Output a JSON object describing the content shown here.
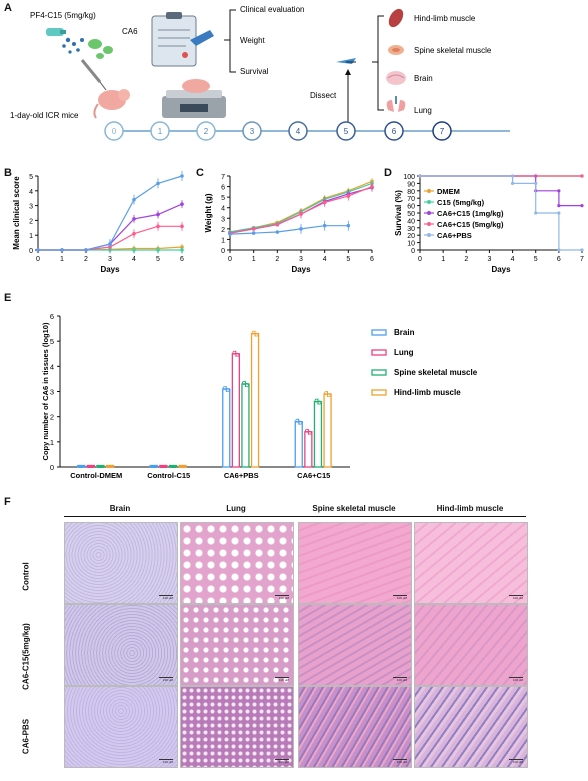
{
  "panels": {
    "A": "A",
    "B": "B",
    "C": "C",
    "D": "D",
    "E": "E",
    "F": "F"
  },
  "panelA": {
    "drug_label": "PF4-C15 (5mg/kg)",
    "virus_label": "CA6",
    "mice_label": "1-day-old ICR mice",
    "eval_items": [
      "Clinical evaluation",
      "Weight",
      "Survival"
    ],
    "dissect_label": "Dissect",
    "tissues": [
      "Hind-limb muscle",
      "Spine skeletal muscle",
      "Brain",
      "Lung"
    ],
    "days": [
      "0",
      "1",
      "2",
      "3",
      "4",
      "5",
      "6",
      "7"
    ],
    "colors": {
      "line": "#6aa0c8",
      "ring_dark": "#2f4f8f",
      "ring_light": "#8ab6d8"
    }
  },
  "chart_data": [
    {
      "panel": "B",
      "type": "line",
      "ylabel": "Mean clinical score",
      "xlabel": "Days",
      "xlim": [
        0,
        6
      ],
      "ylim": [
        0,
        5
      ],
      "x_ticks": [
        "0",
        "1",
        "2",
        "3",
        "4",
        "5",
        "6"
      ],
      "y_ticks": [
        "0",
        "1",
        "2",
        "3",
        "4",
        "5"
      ],
      "x": [
        0,
        1,
        2,
        3,
        4,
        5,
        6
      ],
      "series": [
        {
          "color": "#f0a030",
          "values": [
            0,
            0,
            0,
            0.05,
            0.1,
            0.1,
            0.2
          ]
        },
        {
          "color": "#40d0a0",
          "values": [
            0,
            0,
            0,
            0,
            0,
            0,
            0
          ]
        },
        {
          "color": "#a040e0",
          "values": [
            0,
            0,
            0,
            0.4,
            2.1,
            2.4,
            3.1
          ]
        },
        {
          "color": "#ff5b8a",
          "values": [
            0,
            0,
            0,
            0.2,
            1.1,
            1.6,
            1.6
          ]
        },
        {
          "color": "#5b9fe8",
          "values": [
            0,
            0,
            0,
            0.4,
            3.4,
            4.5,
            5.0
          ]
        }
      ]
    },
    {
      "panel": "C",
      "type": "line",
      "ylabel": "Weight (g)",
      "xlabel": "Days",
      "xlim": [
        0,
        6
      ],
      "ylim": [
        0,
        7
      ],
      "x_ticks": [
        "0",
        "1",
        "2",
        "3",
        "4",
        "5",
        "6"
      ],
      "y_ticks": [
        "0",
        "1",
        "2",
        "3",
        "4",
        "5",
        "6",
        "7"
      ],
      "x": [
        0,
        1,
        2,
        3,
        4,
        5,
        6
      ],
      "series": [
        {
          "color": "#f0a030",
          "values": [
            1.7,
            2.1,
            2.6,
            3.7,
            4.9,
            5.6,
            6.5
          ]
        },
        {
          "color": "#40d0a0",
          "values": [
            1.7,
            2.1,
            2.5,
            3.6,
            4.8,
            5.5,
            6.3
          ]
        },
        {
          "color": "#a040e0",
          "values": [
            1.6,
            2.0,
            2.4,
            3.4,
            4.6,
            5.3,
            5.9
          ]
        },
        {
          "color": "#ff5b8a",
          "values": [
            1.6,
            2.0,
            2.4,
            3.4,
            4.5,
            5.1,
            6.0
          ]
        },
        {
          "color": "#5b9fe8",
          "values": [
            1.5,
            1.6,
            1.7,
            2.0,
            2.3,
            2.3,
            null
          ]
        }
      ]
    },
    {
      "panel": "D",
      "type": "line",
      "ylabel": "Survival (%)",
      "xlabel": "Days",
      "xlim": [
        0,
        7
      ],
      "ylim": [
        0,
        100
      ],
      "x_ticks": [
        "0",
        "1",
        "2",
        "3",
        "4",
        "5",
        "6",
        "7"
      ],
      "y_ticks": [
        "0",
        "10",
        "20",
        "30",
        "40",
        "50",
        "60",
        "70",
        "80",
        "90",
        "100"
      ],
      "legend_placement": "inside-left",
      "series": [
        {
          "name": "DMEM",
          "color": "#f0a030",
          "steps": [
            [
              0,
              100
            ],
            [
              7,
              100
            ]
          ]
        },
        {
          "name": "C15 (5mg/kg)",
          "color": "#40d0a0",
          "steps": [
            [
              0,
              100
            ],
            [
              7,
              100
            ]
          ]
        },
        {
          "name": "CA6+C15 (1mg/kg)",
          "color": "#a040e0",
          "steps": [
            [
              0,
              100
            ],
            [
              5,
              100
            ],
            [
              5,
              80
            ],
            [
              6,
              80
            ],
            [
              6,
              60
            ],
            [
              7,
              60
            ]
          ]
        },
        {
          "name": "CA6+C15 (5mg/kg)",
          "color": "#ff5b8a",
          "steps": [
            [
              0,
              100
            ],
            [
              7,
              100
            ]
          ]
        },
        {
          "name": "CA6+PBS",
          "color": "#8fb8e8",
          "steps": [
            [
              0,
              100
            ],
            [
              4,
              100
            ],
            [
              4,
              90
            ],
            [
              5,
              90
            ],
            [
              5,
              50
            ],
            [
              6,
              50
            ],
            [
              6,
              0
            ],
            [
              7,
              0
            ]
          ]
        }
      ]
    },
    {
      "panel": "E",
      "type": "bar",
      "ylabel": "Copy number of CA6 in tissues (log10)",
      "ylim": [
        0,
        6
      ],
      "y_ticks": [
        "0",
        "1",
        "2",
        "3",
        "4",
        "5",
        "6"
      ],
      "categories": [
        "Control-DMEM",
        "Control-C15",
        "CA6+PBS",
        "CA6+C15"
      ],
      "series": [
        {
          "name": "Brain",
          "color": "#4a9ef0",
          "values": [
            0,
            0,
            3.1,
            1.8
          ]
        },
        {
          "name": "Lung",
          "color": "#f04080",
          "values": [
            0,
            0,
            4.5,
            1.4
          ]
        },
        {
          "name": "Spine skeletal muscle",
          "color": "#20b070",
          "values": [
            0,
            0,
            3.3,
            2.6
          ]
        },
        {
          "name": "Hind-limb muscle",
          "color": "#f0a030",
          "values": [
            0,
            0,
            5.3,
            2.9
          ]
        }
      ]
    }
  ],
  "panelF": {
    "columns": [
      "Brain",
      "Lung",
      "Spine skeletal muscle",
      "Hind-limb muscle"
    ],
    "rows": [
      "Control",
      "CA6-C15(5mg/kg)",
      "CA6-PBS"
    ],
    "scale_bar": "100 μM",
    "colors": {
      "brain": "#c9c0e2",
      "lung": "#e8b8d8",
      "muscle": "#f0a6cc",
      "hindlimb": "#f3b6d6"
    }
  }
}
